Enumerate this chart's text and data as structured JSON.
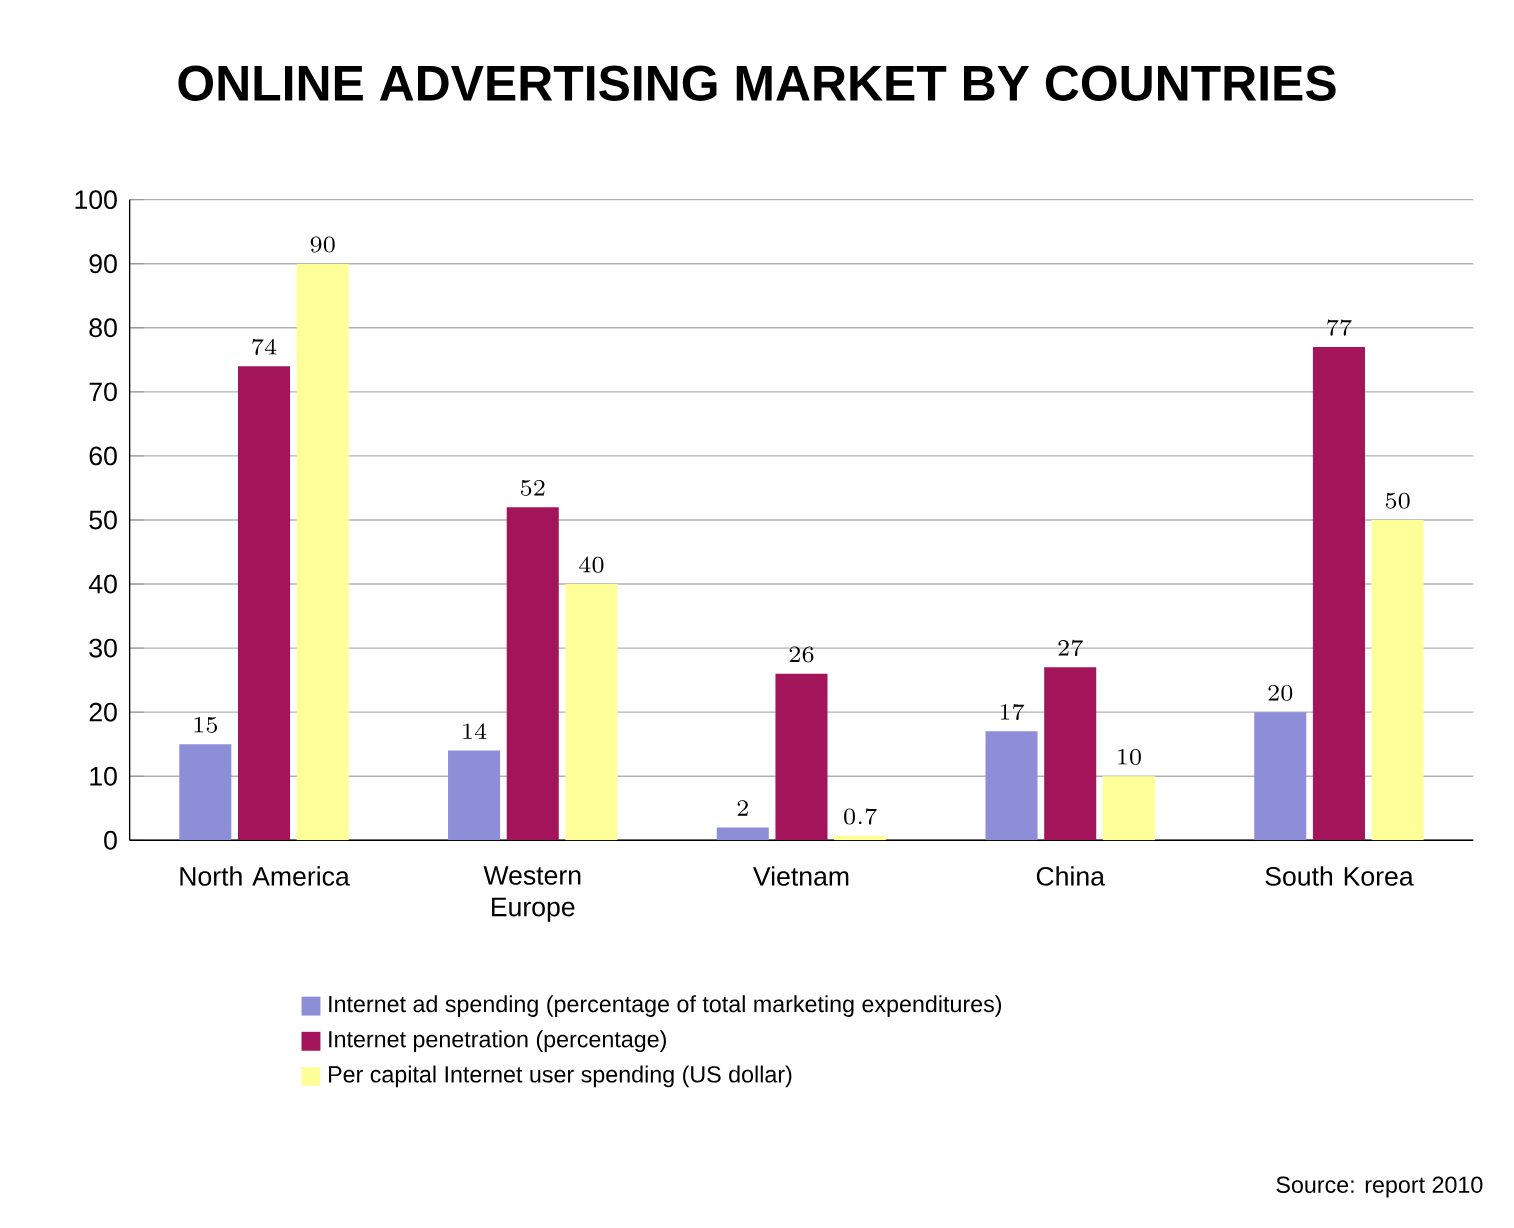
{
  "chart_data": {
    "type": "bar",
    "title": "ONLINE ADVERTISING MARKET BY COUNTRIES",
    "categories": [
      "North America",
      "Western Europe",
      "Vietnam",
      "China",
      "South Korea"
    ],
    "series": [
      {
        "name": "Internet ad spending (percentage of total marketing expenditures)",
        "color": "#8e8ed8",
        "values": [
          15,
          14,
          2,
          17,
          20
        ]
      },
      {
        "name": "Internet penetration (percentage)",
        "color": "#a3145a",
        "values": [
          74,
          52,
          26,
          27,
          77
        ]
      },
      {
        "name": "Per capital Internet user spending (US dollar)",
        "color": "#ffff99",
        "values": [
          90,
          40,
          0.7,
          10,
          50
        ]
      }
    ],
    "ylim": [
      0,
      100
    ],
    "yticks": [
      0,
      10,
      20,
      30,
      40,
      50,
      60,
      70,
      80,
      90,
      100
    ],
    "grid": "y",
    "legend": "bottom",
    "data_labels": true,
    "annotations": [
      "Source: report 2010"
    ]
  }
}
